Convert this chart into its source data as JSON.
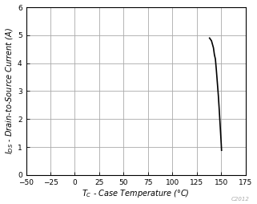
{
  "xlim": [
    -50,
    175
  ],
  "ylim": [
    0,
    6
  ],
  "xticks": [
    -50,
    -25,
    0,
    25,
    50,
    75,
    100,
    125,
    150,
    175
  ],
  "yticks": [
    0,
    1,
    2,
    3,
    4,
    5,
    6
  ],
  "curve_x": [
    138,
    140,
    142,
    143,
    144,
    145,
    146,
    147,
    148,
    149,
    150,
    150.2,
    150.3,
    150.3,
    150.3,
    150.3,
    150.3
  ],
  "curve_y": [
    4.9,
    4.8,
    4.55,
    4.3,
    4.15,
    3.75,
    3.3,
    2.85,
    2.3,
    1.7,
    1.1,
    0.95,
    0.88,
    0.88,
    0.88,
    0.88,
    0.88
  ],
  "line_color": "#000000",
  "line_width": 1.2,
  "grid_color": "#aaaaaa",
  "bg_color": "#ffffff",
  "watermark": "C2012",
  "xlabel": "TC - Case Temperature (°C)",
  "ylabel": "IDS - Drain-to-Source Current (A)",
  "tick_fontsize": 6.5,
  "label_fontsize": 7
}
